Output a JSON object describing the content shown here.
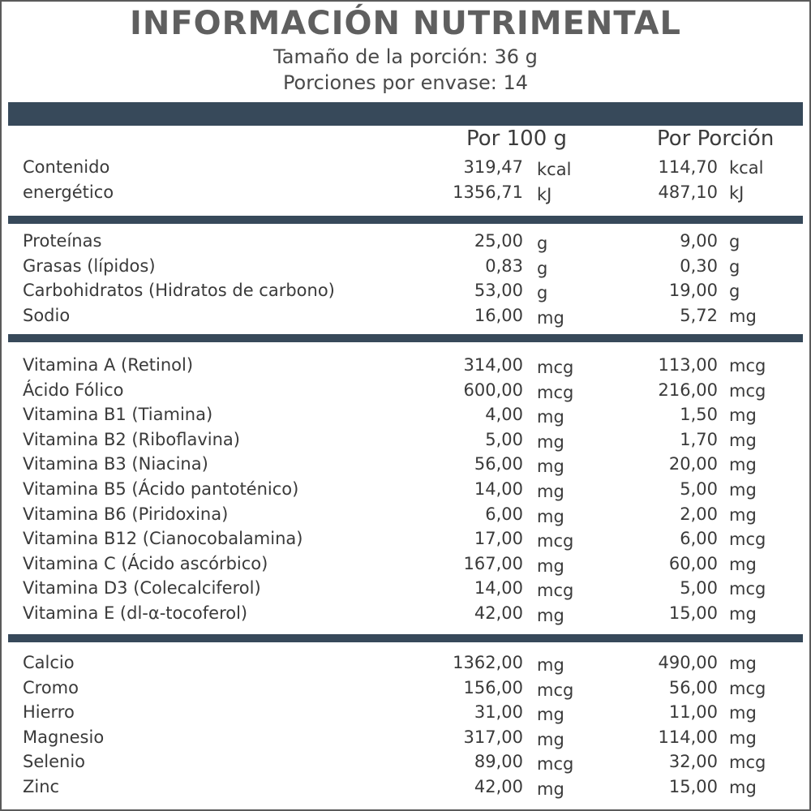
{
  "header": {
    "title": "INFORMACIÓN NUTRIMENTAL",
    "serving_size": "Tamaño de la porción: 36 g",
    "servings_per_container": "Porciones por envase: 14"
  },
  "columns": {
    "per_100g": "Por 100 g",
    "per_serving": "Por Porción"
  },
  "energy": [
    {
      "name": "Contenido",
      "v1": "319,47",
      "u1": "kcal",
      "v2": "114,70",
      "u2": "kcal"
    },
    {
      "name": "energético",
      "v1": "1356,71",
      "u1": "kJ",
      "v2": "487,10",
      "u2": "kJ"
    }
  ],
  "macros": [
    {
      "name": "Proteínas",
      "v1": "25,00",
      "u1": "g",
      "v2": "9,00",
      "u2": "g"
    },
    {
      "name": "Grasas (lípidos)",
      "v1": "0,83",
      "u1": "g",
      "v2": "0,30",
      "u2": "g"
    },
    {
      "name": "Carbohidratos (Hidratos de carbono)",
      "v1": "53,00",
      "u1": "g",
      "v2": "19,00",
      "u2": "g"
    },
    {
      "name": "Sodio",
      "v1": "16,00",
      "u1": "mg",
      "v2": "5,72",
      "u2": "mg"
    }
  ],
  "vitamins": [
    {
      "name": "Vitamina A (Retinol)",
      "v1": "314,00",
      "u1": "mcg",
      "v2": "113,00",
      "u2": "mcg"
    },
    {
      "name": "Ácido Fólico",
      "v1": "600,00",
      "u1": "mcg",
      "v2": "216,00",
      "u2": "mcg"
    },
    {
      "name": "Vitamina B1 (Tiamina)",
      "v1": "4,00",
      "u1": "mg",
      "v2": "1,50",
      "u2": "mg"
    },
    {
      "name": "Vitamina B2 (Riboflavina)",
      "v1": "5,00",
      "u1": "mg",
      "v2": "1,70",
      "u2": "mg"
    },
    {
      "name": "Vitamina B3 (Niacina)",
      "v1": "56,00",
      "u1": "mg",
      "v2": "20,00",
      "u2": "mg"
    },
    {
      "name": "Vitamina B5 (Ácido pantoténico)",
      "v1": "14,00",
      "u1": "mg",
      "v2": "5,00",
      "u2": "mg"
    },
    {
      "name": "Vitamina B6 (Piridoxina)",
      "v1": "6,00",
      "u1": "mg",
      "v2": "2,00",
      "u2": "mg"
    },
    {
      "name": "Vitamina B12 (Cianocobalamina)",
      "v1": "17,00",
      "u1": "mcg",
      "v2": "6,00",
      "u2": "mcg"
    },
    {
      "name": "Vitamina C (Ácido ascórbico)",
      "v1": "167,00",
      "u1": "mg",
      "v2": "60,00",
      "u2": "mg"
    },
    {
      "name": "Vitamina D3 (Colecalciferol)",
      "v1": "14,00",
      "u1": "mcg",
      "v2": "5,00",
      "u2": "mcg"
    },
    {
      "name": "Vitamina E (dl-α-tocoferol)",
      "v1": "42,00",
      "u1": "mg",
      "v2": "15,00",
      "u2": "mg"
    }
  ],
  "minerals": [
    {
      "name": "Calcio",
      "v1": "1362,00",
      "u1": "mg",
      "v2": "490,00",
      "u2": "mg"
    },
    {
      "name": "Cromo",
      "v1": "156,00",
      "u1": "mcg",
      "v2": "56,00",
      "u2": "mcg"
    },
    {
      "name": "Hierro",
      "v1": "31,00",
      "u1": "mg",
      "v2": "11,00",
      "u2": "mg"
    },
    {
      "name": "Magnesio",
      "v1": "317,00",
      "u1": "mg",
      "v2": "114,00",
      "u2": "mg"
    },
    {
      "name": "Selenio",
      "v1": "89,00",
      "u1": "mcg",
      "v2": "32,00",
      "u2": "mcg"
    },
    {
      "name": "Zinc",
      "v1": "42,00",
      "u1": "mg",
      "v2": "15,00",
      "u2": "mg"
    }
  ],
  "colors": {
    "bar": "#37495a",
    "title": "#5f5f5f",
    "text": "#3a3a3a"
  }
}
